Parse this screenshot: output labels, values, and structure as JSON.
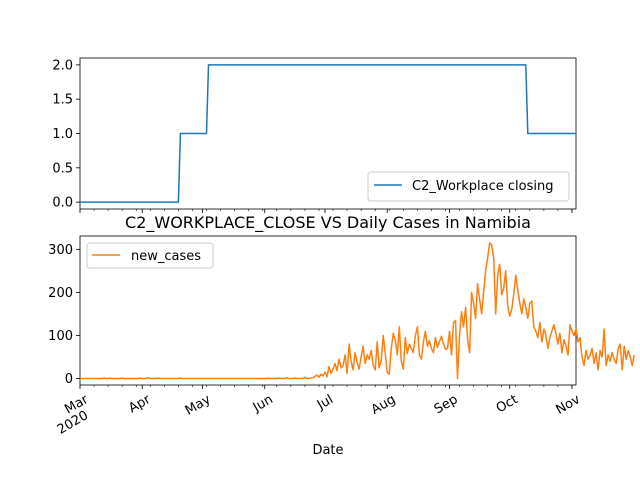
{
  "chart_data": [
    {
      "type": "line",
      "name": "top-panel",
      "series": [
        {
          "name": "C2_Workplace closing",
          "color": "#1f77b4",
          "points": [
            [
              "2020-03-01",
              0
            ],
            [
              "2020-04-19",
              0
            ],
            [
              "2020-04-20",
              1
            ],
            [
              "2020-05-03",
              1
            ],
            [
              "2020-05-04",
              2
            ],
            [
              "2020-10-09",
              2
            ],
            [
              "2020-10-10",
              1
            ],
            [
              "2020-11-03",
              1
            ]
          ]
        }
      ],
      "yticks": [
        "0.0",
        "0.5",
        "1.0",
        "1.5",
        "2.0"
      ],
      "ytick_values": [
        0,
        0.5,
        1.0,
        1.5,
        2.0
      ],
      "ylim": [
        -0.1,
        2.1
      ],
      "xlim": [
        "2020-03-01",
        "2020-11-03"
      ],
      "legend_placement": "lower-right",
      "grid": false
    },
    {
      "type": "line",
      "name": "bottom-panel",
      "title": "C2_WORKPLACE_CLOSE VS Daily Cases in Namibia",
      "xlabel": "Date",
      "series": [
        {
          "name": "new_cases",
          "color": "#ff7f0e",
          "start": "2020-03-01",
          "values": [
            0,
            0,
            0,
            0,
            0,
            0,
            0,
            0,
            0,
            0,
            0,
            0,
            1,
            0,
            0,
            1,
            0,
            0,
            0,
            0,
            0,
            1,
            0,
            0,
            0,
            0,
            0,
            0,
            0,
            0,
            1,
            0,
            0,
            0,
            2,
            0,
            0,
            0,
            0,
            1,
            0,
            0,
            0,
            0,
            0,
            0,
            0,
            0,
            0,
            0,
            1,
            0,
            0,
            0,
            0,
            0,
            0,
            0,
            0,
            0,
            0,
            0,
            0,
            0,
            0,
            0,
            0,
            0,
            0,
            0,
            0,
            0,
            0,
            0,
            0,
            0,
            0,
            0,
            0,
            0,
            0,
            0,
            0,
            0,
            0,
            0,
            0,
            0,
            0,
            0,
            0,
            0,
            0,
            0,
            1,
            0,
            0,
            0,
            0,
            1,
            0,
            0,
            0,
            2,
            0,
            0,
            0,
            1,
            0,
            0,
            0,
            0,
            3,
            0,
            0,
            1,
            2,
            5,
            8,
            3,
            10,
            6,
            15,
            4,
            28,
            12,
            22,
            35,
            18,
            45,
            25,
            30,
            55,
            12,
            80,
            40,
            20,
            60,
            38,
            22,
            50,
            75,
            35,
            55,
            45,
            65,
            30,
            20,
            85,
            25,
            42,
            100,
            60,
            15,
            10,
            70,
            105,
            90,
            55,
            120,
            40,
            22,
            95,
            58,
            80,
            70,
            60,
            100,
            120,
            55,
            45,
            85,
            110,
            75,
            88,
            70,
            60,
            95,
            72,
            85,
            98,
            80,
            68,
            70,
            110,
            55,
            130,
            135,
            0,
            100,
            155,
            120,
            165,
            90,
            60,
            200,
            175,
            140,
            220,
            185,
            150,
            200,
            250,
            280,
            315,
            310,
            280,
            150,
            240,
            265,
            195,
            210,
            250,
            170,
            145,
            160,
            195,
            240,
            205,
            175,
            150,
            185,
            165,
            140,
            175,
            180,
            120,
            110,
            95,
            130,
            85,
            115,
            100,
            70,
            95,
            110,
            125,
            105,
            80,
            105,
            60,
            90,
            75,
            55,
            125,
            110,
            100,
            115,
            85,
            95,
            50,
            30,
            65,
            45,
            55,
            70,
            35,
            60,
            20,
            65,
            50,
            115,
            30,
            55,
            40,
            60,
            45,
            35,
            70,
            80,
            20,
            75,
            45,
            65,
            50,
            30,
            55
          ],
          "ymax_observed": 315
        }
      ],
      "yticks": [
        "0",
        "100",
        "200",
        "300"
      ],
      "ytick_values": [
        0,
        100,
        200,
        300
      ],
      "ylim": [
        -15,
        331
      ],
      "xlim": [
        "2020-03-01",
        "2020-11-03"
      ],
      "xticks": [
        {
          "date": "2020-03-01",
          "label": "Mar",
          "sublabel": "2020"
        },
        {
          "date": "2020-04-01",
          "label": "Apr"
        },
        {
          "date": "2020-05-01",
          "label": "May"
        },
        {
          "date": "2020-06-01",
          "label": "Jun"
        },
        {
          "date": "2020-07-01",
          "label": "Jul"
        },
        {
          "date": "2020-08-01",
          "label": "Aug"
        },
        {
          "date": "2020-09-01",
          "label": "Sep"
        },
        {
          "date": "2020-10-01",
          "label": "Oct"
        },
        {
          "date": "2020-11-01",
          "label": "Nov"
        }
      ],
      "legend_placement": "top-left",
      "grid": false
    }
  ]
}
